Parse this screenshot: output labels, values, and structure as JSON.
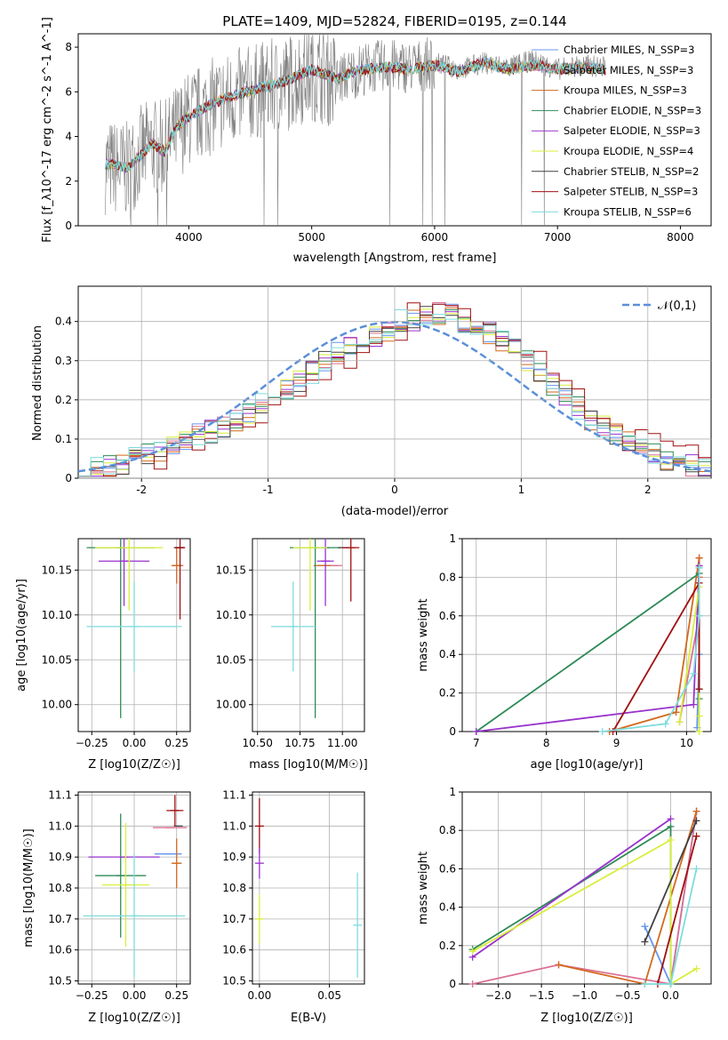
{
  "figure_title": "PLATE=1409, MJD=52824, FIBERID=0195, z=0.144",
  "legend_entries": [
    {
      "label": "Chabrier MILES, N_SSP=3",
      "color": "#6495ED"
    },
    {
      "label": "Salpeter MILES, N_SSP=3",
      "color": "#DB7093"
    },
    {
      "label": "Kroupa MILES, N_SSP=3",
      "color": "#D2691E"
    },
    {
      "label": "Chabrier ELODIE, N_SSP=3",
      "color": "#2E8B57"
    },
    {
      "label": "Salpeter ELODIE, N_SSP=3",
      "color": "#9932CC"
    },
    {
      "label": "Kroupa ELODIE, N_SSP=4",
      "color": "#D9EE3A"
    },
    {
      "label": "Chabrier STELIB, N_SSP=2",
      "color": "#404040"
    },
    {
      "label": "Salpeter STELIB, N_SSP=3",
      "color": "#A01010"
    },
    {
      "label": "Kroupa STELIB, N_SSP=6",
      "color": "#7FDCDC"
    }
  ],
  "chart_data": [
    {
      "type": "line",
      "xlabel": "wavelength [Angstrom, rest frame]",
      "ylabel": "Flux [f_λ10^-17 erg cm^-2 s^-1 A^-1]",
      "xlim": [
        3100,
        8250
      ],
      "ylim": [
        0,
        8.6
      ],
      "xticks": [
        4000,
        5000,
        6000,
        7000,
        8000
      ],
      "yticks": [
        0,
        2,
        4,
        6,
        8
      ],
      "data_color": "#808080",
      "x": [
        3300,
        3400,
        3500,
        3600,
        3700,
        3800,
        3900,
        4000,
        4200,
        4400,
        4600,
        4800,
        5000,
        5200,
        5400,
        5600,
        5800,
        6000,
        6200,
        6400,
        6600,
        6800,
        7000,
        7200,
        7400
      ],
      "data_flux": [
        2.7,
        2.6,
        2.5,
        3.2,
        3.6,
        3.4,
        4.2,
        4.8,
        5.4,
        5.8,
        6.1,
        6.4,
        6.9,
        6.5,
        7.0,
        7.2,
        7.1,
        7.3,
        7.0,
        7.3,
        7.1,
        7.4,
        7.0,
        7.2,
        7.1
      ],
      "model_flux": [
        2.8,
        2.7,
        2.6,
        3.1,
        3.7,
        3.3,
        4.4,
        4.9,
        5.5,
        5.9,
        6.2,
        6.5,
        7.0,
        6.6,
        7.0,
        7.1,
        7.0,
        7.2,
        6.9,
        7.3,
        7.0,
        7.2,
        7.0,
        7.1,
        7.0
      ],
      "legend_position": "upper right"
    },
    {
      "type": "histogram",
      "xlabel": "(data-model)/error",
      "ylabel": "Normed distribution",
      "xlim": [
        -2.5,
        2.5
      ],
      "ylim": [
        0,
        0.49
      ],
      "xticks": [
        -2,
        -1,
        0,
        1,
        2
      ],
      "yticks": [
        0.0,
        0.1,
        0.2,
        0.3,
        0.4
      ],
      "bin_edges_from": -2.5,
      "bin_width": 0.1,
      "gaussian_label": "𝒩(0,1)",
      "gaussian_color": "#5B8FD9",
      "series_base": [
        0.02,
        0.025,
        0.03,
        0.04,
        0.05,
        0.06,
        0.07,
        0.09,
        0.1,
        0.11,
        0.12,
        0.13,
        0.15,
        0.17,
        0.19,
        0.21,
        0.23,
        0.25,
        0.27,
        0.3,
        0.32,
        0.33,
        0.35,
        0.36,
        0.38,
        0.4,
        0.4,
        0.41,
        0.42,
        0.43,
        0.4,
        0.38,
        0.37,
        0.35,
        0.33,
        0.3,
        0.27,
        0.24,
        0.21,
        0.18,
        0.15,
        0.13,
        0.11,
        0.09,
        0.08,
        0.06,
        0.05,
        0.04,
        0.03,
        0.025
      ]
    },
    {
      "type": "scatter",
      "subtype": "errorbar",
      "xlabel": "Z [log10(Z/Z☉)]",
      "ylabel": "age  [log10(age/yr)]",
      "xlim": [
        -0.33,
        0.33
      ],
      "ylim": [
        9.97,
        10.185
      ],
      "xticks": [
        -0.25,
        0.0,
        0.25
      ],
      "xtick_labels": [
        "−0.25",
        "0.00",
        "0.25"
      ],
      "yticks": [
        10.0,
        10.05,
        10.1,
        10.15
      ],
      "ytick_labels": [
        "10.00",
        "10.05",
        "10.10",
        "10.15"
      ],
      "points": [
        {
          "x": 0.27,
          "xerr": 0.02,
          "y": 10.175,
          "yerr": 0.0,
          "color": "#6495ED"
        },
        {
          "x": 0.26,
          "xerr": 0.03,
          "y": 10.155,
          "yerr": 0.0,
          "color": "#DB7093"
        },
        {
          "x": 0.25,
          "xerr": 0.03,
          "y": 10.155,
          "yerr": 0.02,
          "color": "#D2691E"
        },
        {
          "x": -0.08,
          "xerr": 0.2,
          "y": 10.175,
          "yerr": 0.19,
          "color": "#2E8B57"
        },
        {
          "x": -0.06,
          "xerr": 0.15,
          "y": 10.16,
          "yerr": 0.05,
          "color": "#9932CC"
        },
        {
          "x": -0.03,
          "xerr": 0.2,
          "y": 10.175,
          "yerr": 0.07,
          "color": "#D9EE3A"
        },
        {
          "x": 0.26,
          "xerr": 0.0,
          "y": 10.175,
          "yerr": 0.0,
          "color": "#404040"
        },
        {
          "x": 0.27,
          "xerr": 0.03,
          "y": 10.175,
          "yerr": 0.08,
          "color": "#A01010"
        },
        {
          "x": 0.0,
          "xerr": 0.28,
          "y": 10.087,
          "yerr": 0.05,
          "color": "#7FDCDC"
        }
      ]
    },
    {
      "type": "scatter",
      "subtype": "errorbar",
      "xlabel": "mass [log10(M/M☉)]",
      "ylabel": "",
      "xlim": [
        10.47,
        11.13
      ],
      "ylim": [
        9.97,
        10.185
      ],
      "xticks": [
        10.5,
        10.75,
        11.0
      ],
      "xtick_labels": [
        "10.50",
        "10.75",
        "11.00"
      ],
      "yticks": [
        10.0,
        10.05,
        10.1,
        10.15
      ],
      "ytick_labels": [
        "10.00",
        "10.05",
        "10.10",
        "10.15"
      ],
      "points": [
        {
          "x": 10.9,
          "xerr": 0.02,
          "y": 10.175,
          "yerr": 0.0,
          "color": "#6495ED"
        },
        {
          "x": 10.95,
          "xerr": 0.05,
          "y": 10.155,
          "yerr": 0.0,
          "color": "#DB7093"
        },
        {
          "x": 10.88,
          "xerr": 0.05,
          "y": 10.155,
          "yerr": 0.0,
          "color": "#D2691E"
        },
        {
          "x": 10.84,
          "xerr": 0.15,
          "y": 10.175,
          "yerr": 0.19,
          "color": "#2E8B57"
        },
        {
          "x": 10.9,
          "xerr": 0.05,
          "y": 10.16,
          "yerr": 0.05,
          "color": "#9932CC"
        },
        {
          "x": 10.81,
          "xerr": 0.1,
          "y": 10.175,
          "yerr": 0.07,
          "color": "#D9EE3A"
        },
        {
          "x": 11.0,
          "xerr": 0.0,
          "y": 10.175,
          "yerr": 0.0,
          "color": "#404040"
        },
        {
          "x": 11.05,
          "xerr": 0.05,
          "y": 10.175,
          "yerr": 0.06,
          "color": "#A01010"
        },
        {
          "x": 10.71,
          "xerr": 0.13,
          "y": 10.087,
          "yerr": 0.05,
          "color": "#7FDCDC"
        }
      ]
    },
    {
      "type": "line",
      "xlabel": "age  [log10(age/yr)]",
      "ylabel": "mass weight",
      "xlim": [
        6.8,
        10.35
      ],
      "ylim": [
        0,
        1
      ],
      "xticks": [
        7,
        8,
        9,
        10
      ],
      "yticks": [
        0.0,
        0.2,
        0.4,
        0.6,
        0.8,
        1.0
      ],
      "series": [
        {
          "color": "#6495ED",
          "x": [
            10.15,
            10.18,
            10.18
          ],
          "y": [
            0.02,
            0.4,
            0.9
          ]
        },
        {
          "color": "#DB7093",
          "x": [
            9.9,
            10.18,
            10.18
          ],
          "y": [
            0.05,
            0.6,
            0.9
          ]
        },
        {
          "color": "#D2691E",
          "x": [
            8.9,
            9.85,
            10.18,
            10.18
          ],
          "y": [
            0.0,
            0.1,
            0.9,
            0.8
          ]
        },
        {
          "color": "#2E8B57",
          "x": [
            7.0,
            10.18,
            10.18
          ],
          "y": [
            0.0,
            0.82,
            0.17
          ]
        },
        {
          "color": "#9932CC",
          "x": [
            7.0,
            10.1,
            10.18
          ],
          "y": [
            0.0,
            0.14,
            0.86
          ]
        },
        {
          "color": "#D9EE3A",
          "x": [
            9.9,
            10.18,
            10.18,
            10.18
          ],
          "y": [
            0.05,
            0.75,
            0.08,
            0.0
          ]
        },
        {
          "color": "#404040",
          "x": [
            10.18,
            10.18
          ],
          "y": [
            0.22,
            0.85
          ]
        },
        {
          "color": "#A01010",
          "x": [
            8.95,
            10.18,
            10.18
          ],
          "y": [
            0.0,
            0.77,
            0.22
          ]
        },
        {
          "color": "#7FDCDC",
          "x": [
            8.8,
            9.7,
            10.1,
            10.18,
            10.18
          ],
          "y": [
            0.0,
            0.04,
            0.3,
            0.6,
            0.85
          ]
        }
      ]
    },
    {
      "type": "scatter",
      "subtype": "errorbar",
      "xlabel": "Z [log10(Z/Z☉)]",
      "ylabel": "mass [log10(M/M☉)]",
      "xlim": [
        -0.33,
        0.33
      ],
      "ylim": [
        10.49,
        11.11
      ],
      "xticks": [
        -0.25,
        0.0,
        0.25
      ],
      "xtick_labels": [
        "−0.25",
        "0.00",
        "0.25"
      ],
      "yticks": [
        10.5,
        10.6,
        10.7,
        10.8,
        10.9,
        11.0,
        11.1
      ],
      "ytick_labels": [
        "10.5",
        "10.6",
        "10.7",
        "10.8",
        "10.9",
        "11.0",
        "11.1"
      ],
      "points": [
        {
          "x": 0.2,
          "xerr": 0.08,
          "y": 10.91,
          "yerr": 0.0,
          "color": "#6495ED"
        },
        {
          "x": 0.21,
          "xerr": 0.1,
          "y": 10.995,
          "yerr": 0.0,
          "color": "#DB7093"
        },
        {
          "x": 0.25,
          "xerr": 0.03,
          "y": 10.88,
          "yerr": 0.08,
          "color": "#D2691E"
        },
        {
          "x": -0.08,
          "xerr": 0.15,
          "y": 10.84,
          "yerr": 0.2,
          "color": "#2E8B57"
        },
        {
          "x": -0.06,
          "xerr": 0.21,
          "y": 10.9,
          "yerr": 0.0,
          "color": "#9932CC"
        },
        {
          "x": -0.05,
          "xerr": 0.14,
          "y": 10.81,
          "yerr": 0.2,
          "color": "#D9EE3A"
        },
        {
          "x": 0.26,
          "xerr": 0.0,
          "y": 11.0,
          "yerr": 0.0,
          "color": "#404040"
        },
        {
          "x": 0.24,
          "xerr": 0.05,
          "y": 11.05,
          "yerr": 0.05,
          "color": "#A01010"
        },
        {
          "x": 0.0,
          "xerr": 0.3,
          "y": 10.71,
          "yerr": 0.2,
          "color": "#7FDCDC"
        }
      ]
    },
    {
      "type": "scatter",
      "subtype": "errorbar",
      "xlabel": "E(B-V)",
      "ylabel": "",
      "xlim": [
        -0.005,
        0.075
      ],
      "ylim": [
        10.49,
        11.11
      ],
      "xticks": [
        0.0,
        0.05
      ],
      "xtick_labels": [
        "0.00",
        "0.05"
      ],
      "yticks": [
        10.5,
        10.6,
        10.7,
        10.8,
        10.9,
        11.0,
        11.1
      ],
      "ytick_labels": [
        "10.5",
        "10.6",
        "10.7",
        "10.8",
        "10.9",
        "11.0",
        "11.1"
      ],
      "points": [
        {
          "x": 0.0,
          "xerr": 0.0,
          "y": 11.0,
          "yerr": 0.09,
          "color": "#A01010"
        },
        {
          "x": 0.0,
          "xerr": 0.0,
          "y": 10.88,
          "yerr": 0.05,
          "color": "#9932CC"
        },
        {
          "x": 0.0,
          "xerr": 0.0,
          "y": 10.7,
          "yerr": 0.08,
          "color": "#D9EE3A"
        },
        {
          "x": 0.07,
          "xerr": 0.0,
          "y": 10.68,
          "yerr": 0.17,
          "color": "#7FDCDC"
        }
      ]
    },
    {
      "type": "line",
      "xlabel": "Z [log10(Z/Z☉)]",
      "ylabel": "mass weight",
      "xlim": [
        -2.42,
        0.47
      ],
      "ylim": [
        0,
        1
      ],
      "xticks": [
        -2.0,
        -1.5,
        -1.0,
        -0.5,
        0.0
      ],
      "xtick_labels": [
        "−2.0",
        "−1.5",
        "−1.0",
        "−0.5",
        "0.0"
      ],
      "yticks": [
        0.0,
        0.2,
        0.4,
        0.6,
        0.8,
        1.0
      ],
      "series": [
        {
          "color": "#6495ED",
          "x": [
            -0.3,
            0.0,
            0.3
          ],
          "y": [
            0.3,
            0.0,
            0.9
          ]
        },
        {
          "color": "#DB7093",
          "x": [
            -2.3,
            -1.3,
            0.0,
            0.3
          ],
          "y": [
            0.0,
            0.1,
            0.0,
            0.9
          ]
        },
        {
          "color": "#D2691E",
          "x": [
            -1.3,
            -0.3,
            0.3
          ],
          "y": [
            0.1,
            0.0,
            0.9
          ]
        },
        {
          "color": "#2E8B57",
          "x": [
            -2.3,
            0.0,
            0.0
          ],
          "y": [
            0.18,
            0.82,
            0.0
          ]
        },
        {
          "color": "#9932CC",
          "x": [
            -2.3,
            0.0
          ],
          "y": [
            0.14,
            0.86
          ]
        },
        {
          "color": "#D9EE3A",
          "x": [
            -2.3,
            0.0,
            0.0,
            0.3
          ],
          "y": [
            0.17,
            0.75,
            0.0,
            0.08
          ]
        },
        {
          "color": "#404040",
          "x": [
            -0.3,
            0.3
          ],
          "y": [
            0.22,
            0.85
          ]
        },
        {
          "color": "#A01010",
          "x": [
            -0.15,
            0.3
          ],
          "y": [
            0.0,
            0.77
          ]
        },
        {
          "color": "#7FDCDC",
          "x": [
            -0.3,
            0.0,
            0.3
          ],
          "y": [
            0.0,
            0.0,
            0.6
          ]
        }
      ]
    }
  ]
}
